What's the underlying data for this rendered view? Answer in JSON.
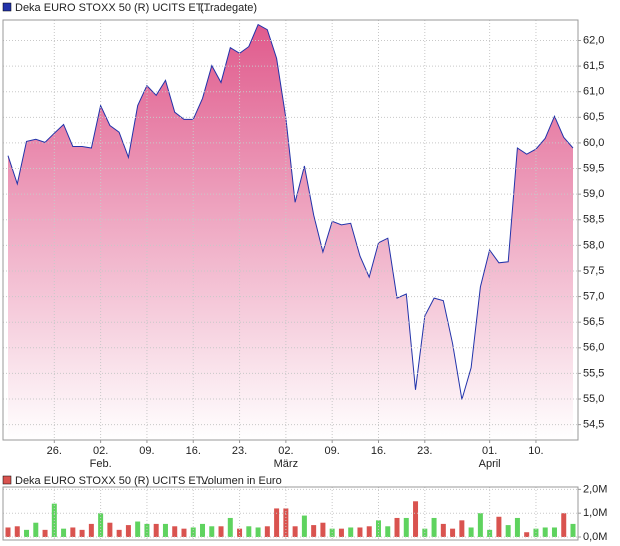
{
  "chart_data": [
    {
      "type": "area",
      "title": "(Tradegate)",
      "series": [
        {
          "name": "Deka EURO STOXX 50 (R) UCITS ET...",
          "color": "#2233aa",
          "fill_color": "#e05a8c",
          "values": [
            59.75,
            59.2,
            60.03,
            60.07,
            60.01,
            60.19,
            60.36,
            59.93,
            59.93,
            59.9,
            60.73,
            60.34,
            60.21,
            59.72,
            60.73,
            61.12,
            60.93,
            61.22,
            60.6,
            60.46,
            60.46,
            60.87,
            61.51,
            61.18,
            61.86,
            61.75,
            61.88,
            62.31,
            62.21,
            61.65,
            60.48,
            58.84,
            59.55,
            58.59,
            57.87,
            58.47,
            58.4,
            58.43,
            57.79,
            57.38,
            58.05,
            58.14,
            56.97,
            57.05,
            55.18,
            56.62,
            56.97,
            56.92,
            56.08,
            54.99,
            55.61,
            57.19,
            57.91,
            57.66,
            57.68,
            59.9,
            59.78,
            59.88,
            60.09,
            60.52,
            60.11,
            59.9
          ]
        }
      ],
      "xlim": [
        0,
        61
      ],
      "xticks": [
        {
          "value": 5,
          "label": "26."
        },
        {
          "value": 10,
          "label": "02."
        },
        {
          "value": 15,
          "label": "09."
        },
        {
          "value": 20,
          "label": "16."
        },
        {
          "value": 25,
          "label": "23."
        },
        {
          "value": 30,
          "label": "02."
        },
        {
          "value": 35,
          "label": "09."
        },
        {
          "value": 40,
          "label": "16."
        },
        {
          "value": 45,
          "label": "23."
        },
        {
          "value": 52,
          "label": "01."
        },
        {
          "value": 57,
          "label": "10."
        }
      ],
      "month_labels": [
        {
          "value": 10,
          "label": "Feb."
        },
        {
          "value": 30,
          "label": "März"
        },
        {
          "value": 52,
          "label": "April"
        }
      ],
      "ylim": [
        54.2,
        62.4
      ],
      "yticks": [
        {
          "value": 54.5,
          "label": "54,5"
        },
        {
          "value": 55,
          "label": "55,0"
        },
        {
          "value": 55.5,
          "label": "55,5"
        },
        {
          "value": 56,
          "label": "56,0"
        },
        {
          "value": 56.5,
          "label": "56,5"
        },
        {
          "value": 57,
          "label": "57,0"
        },
        {
          "value": 57.5,
          "label": "57,5"
        },
        {
          "value": 58,
          "label": "58,0"
        },
        {
          "value": 58.5,
          "label": "58,5"
        },
        {
          "value": 59,
          "label": "59,0"
        },
        {
          "value": 59.5,
          "label": "59,5"
        },
        {
          "value": 60,
          "label": "60,0"
        },
        {
          "value": 60.5,
          "label": "60,5"
        },
        {
          "value": 61,
          "label": "61,0"
        },
        {
          "value": 61.5,
          "label": "61,5"
        },
        {
          "value": 62,
          "label": "62,0"
        }
      ],
      "grid": true
    },
    {
      "type": "bar",
      "title": "Volumen in Euro",
      "series": [
        {
          "name": "Deka EURO STOXX 50 (R) UCITS ET...",
          "color": "#d9534f",
          "values": [
            0.4,
            0.45,
            0.3,
            0.6,
            0.3,
            1.4,
            0.35,
            0.4,
            0.3,
            0.55,
            1.0,
            0.6,
            0.3,
            0.5,
            0.65,
            0.55,
            0.55,
            0.55,
            0.45,
            0.35,
            0.4,
            0.55,
            0.45,
            0.45,
            0.8,
            0.35,
            0.45,
            0.4,
            0.45,
            1.2,
            1.2,
            0.45,
            0.9,
            0.5,
            0.6,
            0.35,
            0.35,
            0.4,
            0.4,
            0.45,
            0.7,
            0.45,
            0.8,
            0.8,
            1.5,
            0.35,
            0.8,
            0.55,
            0.35,
            0.7,
            0.4,
            1.0,
            0.3,
            0.85,
            0.5,
            0.8,
            0.2,
            0.35,
            0.4,
            0.4,
            1.0,
            0.55
          ],
          "colors": [
            "#d9534f",
            "#d9534f",
            "#5fd35f",
            "#5fd35f",
            "#d9534f",
            "#5fd35f",
            "#5fd35f",
            "#d9534f",
            "#d9534f",
            "#d9534f",
            "#5fd35f",
            "#d9534f",
            "#d9534f",
            "#d9534f",
            "#5fd35f",
            "#5fd35f",
            "#d9534f",
            "#5fd35f",
            "#d9534f",
            "#d9534f",
            "#5fd35f",
            "#5fd35f",
            "#5fd35f",
            "#d9534f",
            "#5fd35f",
            "#d9534f",
            "#5fd35f",
            "#5fd35f",
            "#d9534f",
            "#d9534f",
            "#d9534f",
            "#d9534f",
            "#5fd35f",
            "#d9534f",
            "#d9534f",
            "#5fd35f",
            "#d9534f",
            "#5fd35f",
            "#d9534f",
            "#d9534f",
            "#5fd35f",
            "#5fd35f",
            "#d9534f",
            "#5fd35f",
            "#d9534f",
            "#5fd35f",
            "#5fd35f",
            "#d9534f",
            "#d9534f",
            "#d9534f",
            "#5fd35f",
            "#5fd35f",
            "#5fd35f",
            "#d9534f",
            "#5fd35f",
            "#5fd35f",
            "#d9534f",
            "#5fd35f",
            "#5fd35f",
            "#5fd35f",
            "#d9534f",
            "#5fd35f"
          ]
        }
      ],
      "xlim": [
        0,
        61
      ],
      "ylim": [
        0,
        2.1
      ],
      "yticks": [
        {
          "value": 0,
          "label": "0,0M"
        },
        {
          "value": 1,
          "label": "1,0M"
        },
        {
          "value": 2,
          "label": "2,0M"
        }
      ],
      "grid": true
    }
  ]
}
